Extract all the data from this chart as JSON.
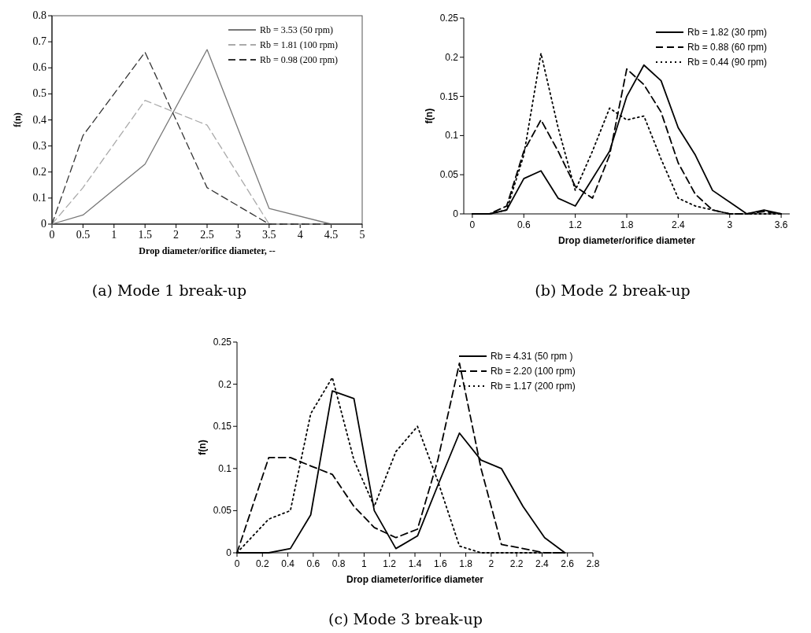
{
  "chart_data": [
    {
      "type": "line",
      "title": "(a) Mode 1 break-up",
      "xlabel": "Drop diameter/orifice diameter, --",
      "ylabel": "f(n)",
      "xlim": [
        0,
        5
      ],
      "xticks": [
        0,
        0.5,
        1,
        1.5,
        2,
        2.5,
        3,
        3.5,
        4,
        4.5,
        5
      ],
      "ylim": [
        0,
        0.8
      ],
      "yticks": [
        0,
        0.1,
        0.2,
        0.3,
        0.4,
        0.5,
        0.6,
        0.7,
        0.8
      ],
      "legend": "top right",
      "grid": false,
      "marker": "none",
      "series": [
        {
          "name": "Rb = 3.53 (50 rpm)",
          "color": "#777777",
          "line_style": "solid",
          "x": [
            0,
            0.5,
            1.5,
            2.5,
            3.5,
            4.5
          ],
          "values": [
            0,
            0.035,
            0.23,
            0.67,
            0.06,
            0
          ]
        },
        {
          "name": "Rb = 1.81 (100 rpm)",
          "color": "#aaaaaa",
          "line_style": "dashed",
          "x": [
            0,
            0.5,
            1.5,
            2.5,
            3.5,
            4.5
          ],
          "values": [
            0,
            0.14,
            0.475,
            0.38,
            0,
            0
          ]
        },
        {
          "name": "Rb = 0.98 (200 rpm)",
          "color": "#333333",
          "line_style": "dashed",
          "x": [
            0,
            0.5,
            1.5,
            2.5,
            3.5,
            4.5
          ],
          "values": [
            0,
            0.34,
            0.66,
            0.14,
            0,
            0
          ]
        }
      ]
    },
    {
      "type": "line",
      "title": "(b) Mode 2 break-up",
      "xlabel": "Drop diameter/orifice diameter",
      "ylabel": "f(n)",
      "xlim": [
        -0.1,
        3.7
      ],
      "xticks": [
        0,
        0.6,
        1.2,
        1.8,
        2.4,
        3,
        3.6
      ],
      "ylim": [
        0,
        0.25
      ],
      "yticks": [
        0,
        0.05,
        0.1,
        0.15,
        0.2,
        0.25
      ],
      "legend": "top right",
      "grid": false,
      "marker": "none",
      "x": [
        0,
        0.2,
        0.4,
        0.6,
        0.8,
        1,
        1.2,
        1.4,
        1.6,
        1.8,
        2,
        2.2,
        2.4,
        2.6,
        2.8,
        3,
        3.2,
        3.4,
        3.6
      ],
      "series": [
        {
          "name": "Rb = 1.82 (30 rpm)",
          "color": "#000000",
          "line_style": "solid",
          "values": [
            0,
            0,
            0.005,
            0.045,
            0.055,
            0.02,
            0.01,
            0.045,
            0.08,
            0.15,
            0.19,
            0.17,
            0.11,
            0.075,
            0.03,
            0.015,
            0,
            0.005,
            0
          ]
        },
        {
          "name": "Rb = 0.88 (60 rpm)",
          "color": "#000000",
          "line_style": "dashed",
          "values": [
            0,
            0,
            0.01,
            0.08,
            0.12,
            0.08,
            0.035,
            0.02,
            0.075,
            0.185,
            0.165,
            0.13,
            0.065,
            0.025,
            0.005,
            0,
            0,
            0.003,
            0
          ]
        },
        {
          "name": "Rb = 0.44 (90 rpm)",
          "color": "#000000",
          "line_style": "dotted",
          "values": [
            0,
            0,
            0.005,
            0.075,
            0.205,
            0.11,
            0.03,
            0.08,
            0.135,
            0.12,
            0.125,
            0.07,
            0.02,
            0.01,
            0.005,
            0,
            0,
            0,
            0
          ]
        }
      ]
    },
    {
      "type": "line",
      "title": "(c) Mode 3 break-up",
      "xlabel": "Drop diameter/orifice diameter",
      "ylabel": "f(n)",
      "xlim": [
        0,
        2.8
      ],
      "xticks": [
        0,
        0.2,
        0.4,
        0.6,
        0.8,
        1,
        1.2,
        1.4,
        1.6,
        1.8,
        2,
        2.2,
        2.4,
        2.6,
        2.8
      ],
      "ylim": [
        0,
        0.25
      ],
      "yticks": [
        0,
        0.05,
        0.1,
        0.15,
        0.2,
        0.25
      ],
      "legend": "top right",
      "grid": false,
      "marker": "none",
      "x": [
        0,
        0.25,
        0.42,
        0.58,
        0.75,
        0.92,
        1.08,
        1.25,
        1.42,
        1.58,
        1.75,
        1.92,
        2.08,
        2.25,
        2.42,
        2.58
      ],
      "series": [
        {
          "name": "Rb = 4.31 (50 rpm )",
          "color": "#000000",
          "line_style": "solid",
          "values": [
            0,
            0,
            0.005,
            0.045,
            0.192,
            0.183,
            0.05,
            0.005,
            0.02,
            0.08,
            0.142,
            0.11,
            0.1,
            0.055,
            0.018,
            0
          ]
        },
        {
          "name": "Rb = 2.20 (100 rpm)",
          "color": "#000000",
          "line_style": "dashed",
          "values": [
            0,
            0.113,
            0.113,
            0.103,
            0.093,
            0.055,
            0.03,
            0.018,
            0.028,
            0.11,
            0.225,
            0.1,
            0.01,
            0.005,
            0,
            0
          ]
        },
        {
          "name": "Rb = 1.17 (200 rpm)",
          "color": "#000000",
          "line_style": "dotted",
          "values": [
            0,
            0.04,
            0.05,
            0.165,
            0.208,
            0.11,
            0.055,
            0.12,
            0.15,
            0.085,
            0.008,
            0,
            0,
            0,
            0,
            0
          ]
        }
      ]
    }
  ]
}
